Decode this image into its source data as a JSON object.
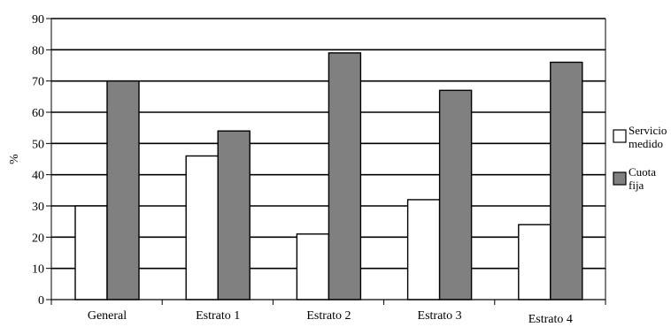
{
  "chart_data": {
    "type": "bar",
    "ylabel": "%",
    "xlabel": "",
    "ylim": [
      0,
      90
    ],
    "yticks": [
      0,
      10,
      20,
      30,
      40,
      50,
      60,
      70,
      80,
      90
    ],
    "grid": true,
    "legend_position": "right",
    "categories": [
      "General",
      "Estrato 1",
      "Estrato 2",
      "Estrato 3",
      "Estrato 4"
    ],
    "series": [
      {
        "name": "Servicio medido",
        "legend_lines": [
          "Servicio",
          "medido"
        ],
        "values": [
          30,
          46,
          21,
          32,
          24
        ],
        "color": "#ffffff"
      },
      {
        "name": "Cuota fija",
        "legend_lines": [
          "Cuota",
          "fija"
        ],
        "values": [
          70,
          54,
          79,
          67,
          76
        ],
        "color": "#808080"
      }
    ]
  }
}
